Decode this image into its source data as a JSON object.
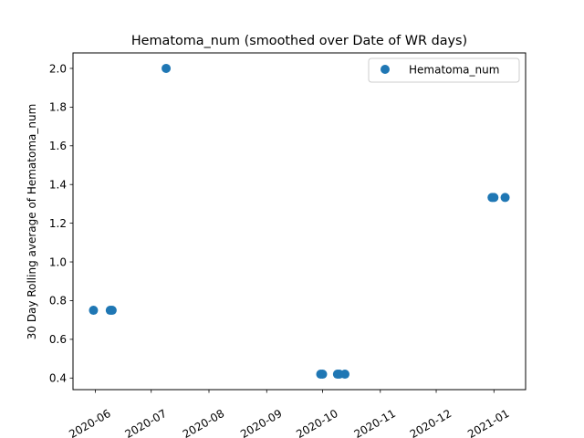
{
  "chart_data": {
    "type": "scatter",
    "title": "Hematoma_num (smoothed over Date of WR days)",
    "xlabel": "",
    "ylabel": "30 Day Rolling average of Hematoma_num",
    "x_range": [
      "2020-05-20",
      "2021-01-18"
    ],
    "ylim": [
      0.34,
      2.08
    ],
    "x_ticks": [
      "2020-06",
      "2020-07",
      "2020-08",
      "2020-09",
      "2020-10",
      "2020-11",
      "2020-12",
      "2021-01"
    ],
    "y_ticks": [
      0.4,
      0.6,
      0.8,
      1.0,
      1.2,
      1.4,
      1.6,
      1.8,
      2.0
    ],
    "y_tick_labels": [
      "0.4",
      "0.6",
      "0.8",
      "1.0",
      "1.2",
      "1.4",
      "1.6",
      "1.8",
      "2.0"
    ],
    "grid": false,
    "legend_position": "top-right",
    "series": [
      {
        "name": "Hematoma_num",
        "color": "#1f77b4",
        "marker": "circle",
        "points": [
          {
            "x": "2020-05-31",
            "y": 0.75
          },
          {
            "x": "2020-06-09",
            "y": 0.75
          },
          {
            "x": "2020-06-10",
            "y": 0.75
          },
          {
            "x": "2020-07-09",
            "y": 2.0
          },
          {
            "x": "2020-09-30",
            "y": 0.42
          },
          {
            "x": "2020-10-01",
            "y": 0.42
          },
          {
            "x": "2020-10-09",
            "y": 0.42
          },
          {
            "x": "2020-10-10",
            "y": 0.42
          },
          {
            "x": "2020-10-13",
            "y": 0.42
          },
          {
            "x": "2020-12-31",
            "y": 1.333
          },
          {
            "x": "2021-01-01",
            "y": 1.333
          },
          {
            "x": "2021-01-07",
            "y": 1.333
          }
        ]
      }
    ]
  }
}
